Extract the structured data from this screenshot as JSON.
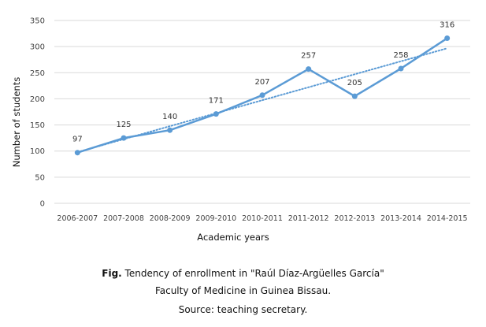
{
  "chart_data": {
    "type": "line",
    "categories": [
      "2006-2007",
      "2007-2008",
      "2008-2009",
      "2009-2010",
      "2010-2011",
      "2011-2012",
      "2012-2013",
      "2013-2014",
      "2014-2015"
    ],
    "series": [
      {
        "name": "Number of students",
        "values": [
          97,
          125,
          140,
          171,
          207,
          257,
          205,
          258,
          316
        ],
        "color": "#5b9bd5"
      }
    ],
    "trendline": {
      "type": "linear",
      "style": "dotted",
      "color": "#5b9bd5"
    },
    "xlabel": "Academic years",
    "ylabel": "Number of students",
    "ylim": [
      0,
      350
    ],
    "yticks": [
      0,
      50,
      100,
      150,
      200,
      250,
      300,
      350
    ],
    "grid": true
  },
  "caption": {
    "prefix": "Fig.",
    "line1": " Tendency of enrollment in \"Raúl Díaz-Argüelles García\"",
    "line2": "Faculty of Medicine in Guinea Bissau.",
    "line3": "Source: teaching secretary."
  }
}
